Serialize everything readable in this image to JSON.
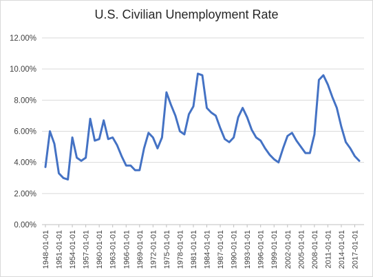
{
  "chart_data": {
    "type": "line",
    "title": "U.S. Civilian Unemployment Rate",
    "xlabel": "",
    "ylabel": "",
    "ylim": [
      0,
      12
    ],
    "y_ticks": [
      "0.00%",
      "2.00%",
      "4.00%",
      "6.00%",
      "8.00%",
      "10.00%",
      "12.00%"
    ],
    "x_tick_labels": [
      "1948-01-01",
      "1951-01-01",
      "1954-01-01",
      "1957-01-01",
      "1960-01-01",
      "1963-01-01",
      "1966-01-01",
      "1969-01-01",
      "1972-01-01",
      "1975-01-01",
      "1978-01-01",
      "1981-01-01",
      "1984-01-01",
      "1987-01-01",
      "1990-01-01",
      "1993-01-01",
      "1996-01-01",
      "1999-01-01",
      "2002-01-01",
      "2005-01-01",
      "2008-01-01",
      "2011-01-01",
      "2014-01-01",
      "2017-01-01"
    ],
    "grid": true,
    "legend": "none",
    "line_color": "#4472c4",
    "series": [
      {
        "x": [
          1948,
          1949,
          1950,
          1951,
          1952,
          1953,
          1954,
          1955,
          1956,
          1957,
          1958,
          1959,
          1960,
          1961,
          1962,
          1963,
          1964,
          1965,
          1966,
          1967,
          1968,
          1969,
          1970,
          1971,
          1972,
          1973,
          1974,
          1975,
          1976,
          1977,
          1978,
          1979,
          1980,
          1981,
          1982,
          1983,
          1984,
          1985,
          1986,
          1987,
          1988,
          1989,
          1990,
          1991,
          1992,
          1993,
          1994,
          1995,
          1996,
          1997,
          1998,
          1999,
          2000,
          2001,
          2002,
          2003,
          2004,
          2005,
          2006,
          2007,
          2008,
          2009,
          2010,
          2011,
          2012,
          2013,
          2014,
          2015,
          2016,
          2017,
          2018
        ],
        "values": [
          3.7,
          6.0,
          5.2,
          3.3,
          3.0,
          2.9,
          5.6,
          4.3,
          4.1,
          4.3,
          6.8,
          5.4,
          5.5,
          6.7,
          5.5,
          5.6,
          5.1,
          4.4,
          3.8,
          3.8,
          3.5,
          3.5,
          4.9,
          5.9,
          5.6,
          4.9,
          5.6,
          8.5,
          7.7,
          7.0,
          6.0,
          5.8,
          7.1,
          7.6,
          9.7,
          9.6,
          7.5,
          7.2,
          7.0,
          6.2,
          5.5,
          5.3,
          5.6,
          6.9,
          7.5,
          6.9,
          6.1,
          5.6,
          5.4,
          4.9,
          4.5,
          4.2,
          4.0,
          4.9,
          5.7,
          5.9,
          5.4,
          5.0,
          4.6,
          4.6,
          5.8,
          9.3,
          9.6,
          9.0,
          8.2,
          7.5,
          6.3,
          5.3,
          4.9,
          4.4,
          4.1
        ]
      }
    ]
  }
}
